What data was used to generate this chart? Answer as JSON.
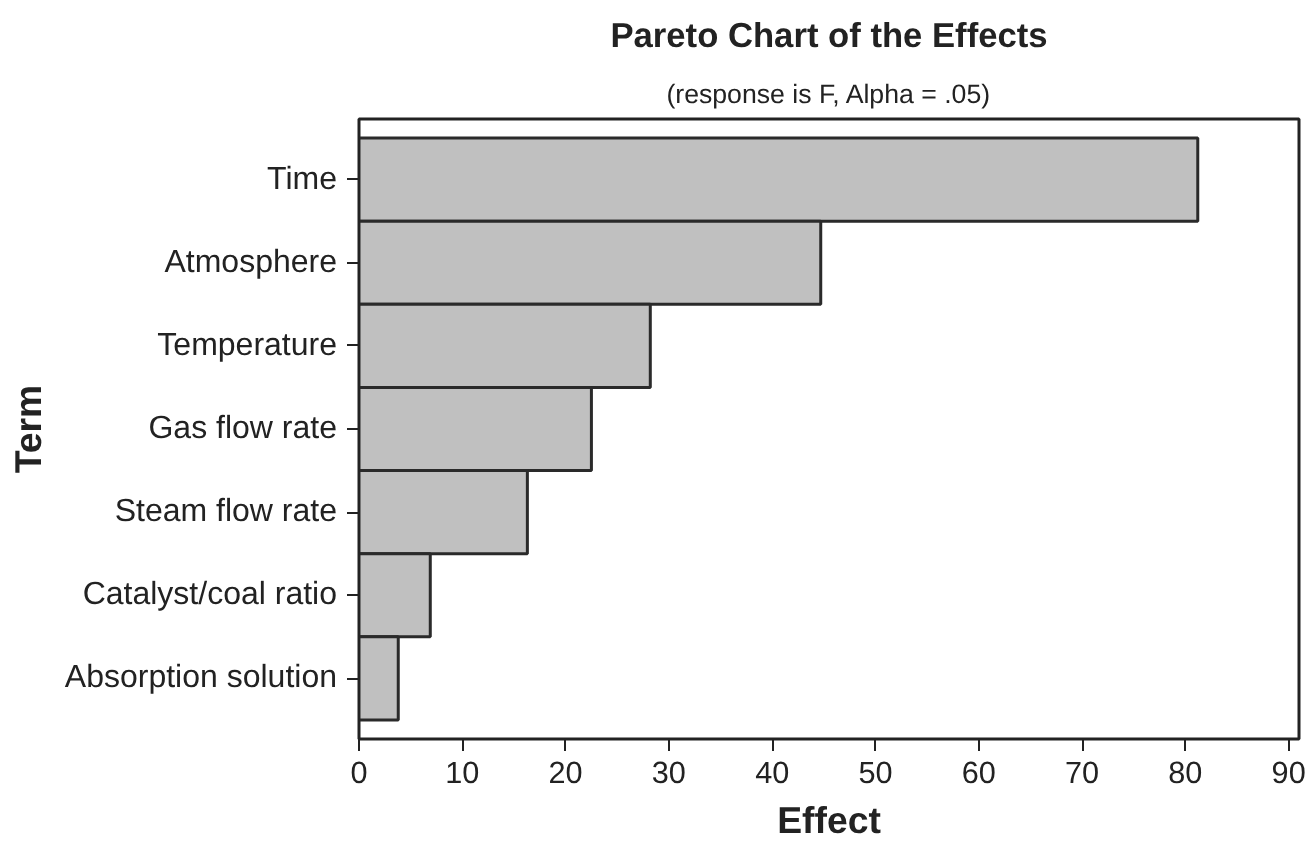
{
  "chart_data": {
    "type": "bar",
    "orientation": "horizontal",
    "title": "Pareto Chart of the Effects",
    "subtitle": "(response is F, Alpha = .05)",
    "xlabel": "Effect",
    "ylabel": "Term",
    "categories": [
      "Time",
      "Atmosphere",
      "Temperature",
      "Gas flow rate",
      "Steam flow rate",
      "Catalyst/coal ratio",
      "Absorption solution"
    ],
    "values": [
      81.2,
      44.7,
      28.2,
      22.5,
      16.3,
      6.9,
      3.8
    ],
    "color": "#c0c0c0",
    "xlim": [
      0,
      91
    ],
    "xticks": [
      0,
      10,
      20,
      30,
      40,
      50,
      60,
      70,
      80,
      90
    ],
    "grid": false
  }
}
